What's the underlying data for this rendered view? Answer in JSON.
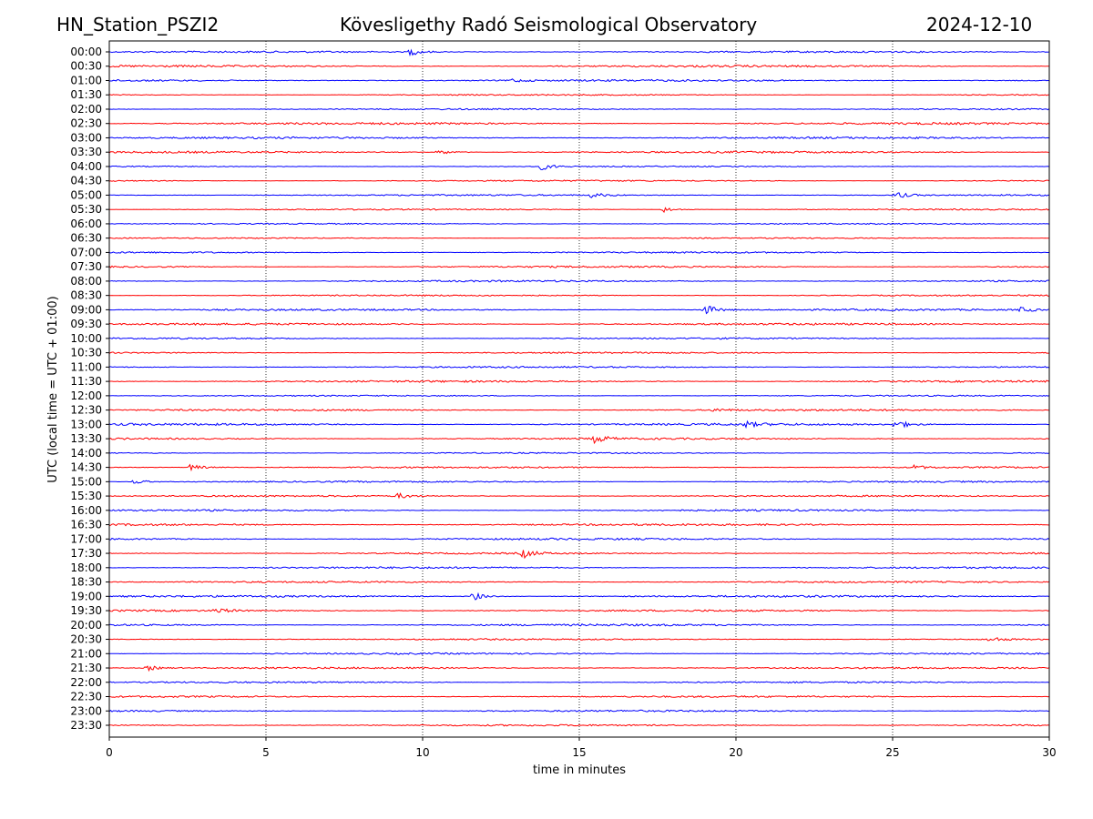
{
  "header": {
    "station": "HN_Station_PSZI2",
    "observatory": "Kövesligethy Radó Seismological Observatory",
    "date": "2024-12-10"
  },
  "chart_data": {
    "type": "line",
    "title": "Kövesligethy Radó Seismological Observatory",
    "xlabel": "time in minutes",
    "ylabel": "UTC (local time = UTC + 01:00)",
    "xlim": [
      0,
      30
    ],
    "x_ticks": [
      "0",
      "5",
      "10",
      "15",
      "20",
      "25",
      "30"
    ],
    "x_tick_values": [
      0,
      5,
      10,
      15,
      20,
      25,
      30
    ],
    "grid": "vertical dotted",
    "row_labels": [
      "00:00",
      "00:30",
      "01:00",
      "01:30",
      "02:00",
      "02:30",
      "03:00",
      "03:30",
      "04:00",
      "04:30",
      "05:00",
      "05:30",
      "06:00",
      "06:30",
      "07:00",
      "07:30",
      "08:00",
      "08:30",
      "09:00",
      "09:30",
      "10:00",
      "10:30",
      "11:00",
      "11:30",
      "12:00",
      "12:30",
      "13:00",
      "13:30",
      "14:00",
      "14:30",
      "15:00",
      "15:30",
      "16:00",
      "16:30",
      "17:00",
      "17:30",
      "18:00",
      "18:30",
      "19:00",
      "19:30",
      "20:00",
      "20:30",
      "21:00",
      "21:30",
      "22:00",
      "22:30",
      "23:00",
      "23:30"
    ],
    "series_colors": [
      "#0000ff",
      "#ff0000"
    ],
    "events": [
      {
        "row": "00:00",
        "minute": 9.6,
        "amp": 4
      },
      {
        "row": "01:00",
        "minute": 12.8,
        "amp": 2
      },
      {
        "row": "03:30",
        "minute": 10.5,
        "amp": 3
      },
      {
        "row": "04:00",
        "minute": 13.8,
        "amp": 4
      },
      {
        "row": "05:00",
        "minute": 25.1,
        "amp": 4
      },
      {
        "row": "05:00",
        "minute": 15.4,
        "amp": 3
      },
      {
        "row": "05:30",
        "minute": 17.7,
        "amp": 3
      },
      {
        "row": "09:00",
        "minute": 19.0,
        "amp": 6
      },
      {
        "row": "09:00",
        "minute": 29.1,
        "amp": 3
      },
      {
        "row": "12:30",
        "minute": 19.3,
        "amp": 2
      },
      {
        "row": "13:00",
        "minute": 20.3,
        "amp": 3
      },
      {
        "row": "13:00",
        "minute": 25.1,
        "amp": 5
      },
      {
        "row": "13:30",
        "minute": 15.5,
        "amp": 5
      },
      {
        "row": "14:30",
        "minute": 2.6,
        "amp": 4
      },
      {
        "row": "14:30",
        "minute": 25.6,
        "amp": 3
      },
      {
        "row": "15:00",
        "minute": 0.8,
        "amp": 3
      },
      {
        "row": "15:30",
        "minute": 9.2,
        "amp": 3
      },
      {
        "row": "17:30",
        "minute": 13.2,
        "amp": 5
      },
      {
        "row": "19:00",
        "minute": 11.6,
        "amp": 5
      },
      {
        "row": "19:30",
        "minute": 3.4,
        "amp": 3
      },
      {
        "row": "20:30",
        "minute": 28.1,
        "amp": 3
      },
      {
        "row": "21:30",
        "minute": 1.2,
        "amp": 3
      }
    ]
  }
}
